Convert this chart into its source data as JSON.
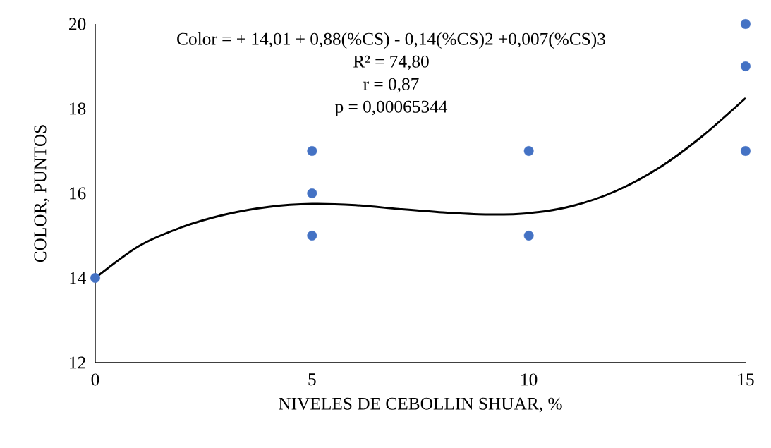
{
  "chart_data": {
    "type": "scatter",
    "xlabel": "NIVELES DE CEBOLLIN SHUAR, %",
    "ylabel": "COLOR, PUNTOS",
    "annotations": [
      "Color  = + 14,01 + 0,88(%CS) - 0,14(%CS)2  +0,007(%CS)3",
      "R² = 74,80",
      "r = 0,87",
      "p =  0,00065344"
    ],
    "xlim": [
      0,
      15
    ],
    "ylim": [
      12,
      20
    ],
    "xticks": [
      0,
      5,
      10,
      15
    ],
    "yticks": [
      12,
      14,
      16,
      18,
      20
    ],
    "grid": false,
    "series": [
      {
        "type": "line",
        "color": "#000000",
        "marker": "none",
        "x": [
          0,
          1,
          2,
          3,
          4,
          5,
          6,
          7,
          8,
          9,
          10,
          11,
          12,
          13,
          14,
          15
        ],
        "values": [
          14.0,
          14.75,
          15.2,
          15.5,
          15.68,
          15.75,
          15.72,
          15.63,
          15.55,
          15.5,
          15.53,
          15.7,
          16.05,
          16.6,
          17.35,
          18.25
        ]
      },
      {
        "color": "#4472c4",
        "marker": "circle",
        "x": [
          0,
          5,
          5,
          5,
          10,
          10,
          15,
          15,
          15
        ],
        "values": [
          14,
          17,
          16,
          15,
          17,
          15,
          20,
          19,
          17
        ]
      }
    ]
  }
}
